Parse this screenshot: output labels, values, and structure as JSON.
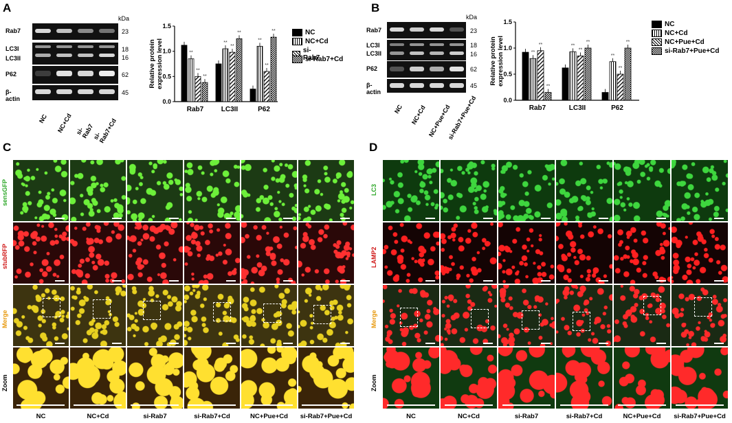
{
  "panels": {
    "A": {
      "label": "A",
      "kda": "kDa",
      "rows": [
        "Rab7",
        "LC3I",
        "LC3II",
        "P62",
        "β-actin"
      ],
      "mw": [
        "23",
        "18",
        "16",
        "62",
        "45"
      ],
      "lanes": [
        "NC",
        "NC+Cd",
        "si-Rab7",
        "si-Rab7+Cd"
      ]
    },
    "B": {
      "label": "B",
      "kda": "kDa",
      "rows": [
        "Rab7",
        "LC3I",
        "LC3II",
        "P62",
        "β-actin"
      ],
      "mw": [
        "23",
        "18",
        "16",
        "62",
        "45"
      ],
      "lanes": [
        "NC",
        "NC+Cd",
        "NC+Pue+Cd",
        "si-Rab7+Pue+Cd"
      ]
    },
    "C": {
      "label": "C",
      "channels": [
        "sensGFP",
        "stubRFP",
        "Merge",
        "Zoom"
      ],
      "columns": [
        "NC",
        "NC+Cd",
        "si-Rab7",
        "si-Rab7+Cd",
        "NC+Pue+Cd",
        "si-Rab7+Pue+Cd"
      ]
    },
    "D": {
      "label": "D",
      "channels": [
        "LC3",
        "LAMP2",
        "Merge",
        "Zoom"
      ],
      "columns": [
        "NC",
        "NC+Cd",
        "si-Rab7",
        "si-Rab7+Cd",
        "NC+Pue+Cd",
        "si-Rab7+Pue+Cd"
      ]
    }
  },
  "chart_data": [
    {
      "type": "bar",
      "ylabel": "Relative protein expression level",
      "categories": [
        "Rab7",
        "LC3II",
        "P62"
      ],
      "ylim": [
        0,
        1.5
      ],
      "yticks": [
        "0.0",
        "0.5",
        "1.0",
        "1.5"
      ],
      "series": [
        {
          "name": "NC",
          "values": [
            1.12,
            0.75,
            0.25
          ]
        },
        {
          "name": "NC+Cd",
          "values": [
            0.85,
            1.05,
            1.1
          ]
        },
        {
          "name": "si-Rab7",
          "values": [
            0.5,
            0.98,
            0.6
          ]
        },
        {
          "name": "si-Rab7+Cd",
          "values": [
            0.38,
            1.25,
            1.28
          ]
        }
      ],
      "annotations": [
        "##",
        "#",
        "#",
        "**"
      ]
    },
    {
      "type": "bar",
      "ylabel": "Relative protein expression level",
      "categories": [
        "Rab7",
        "LC3II",
        "P62"
      ],
      "ylim": [
        0,
        1.5
      ],
      "yticks": [
        "0.0",
        "0.5",
        "1.0",
        "1.5"
      ],
      "series": [
        {
          "name": "NC",
          "values": [
            0.92,
            0.62,
            0.15
          ]
        },
        {
          "name": "NC+Cd",
          "values": [
            0.8,
            0.93,
            0.74
          ]
        },
        {
          "name": "NC+Pue+Cd",
          "values": [
            0.95,
            0.85,
            0.5
          ]
        },
        {
          "name": "si-Rab7+Pue+Cd",
          "values": [
            0.15,
            1.0,
            1.0
          ]
        }
      ],
      "annotations": [
        "##",
        "##",
        "##",
        "##",
        "##",
        "##",
        "**"
      ]
    }
  ],
  "colors": {
    "green": "#2fa82a",
    "red": "#c41a1a",
    "merge": "#7a6a14",
    "blue": "#2233aa"
  }
}
